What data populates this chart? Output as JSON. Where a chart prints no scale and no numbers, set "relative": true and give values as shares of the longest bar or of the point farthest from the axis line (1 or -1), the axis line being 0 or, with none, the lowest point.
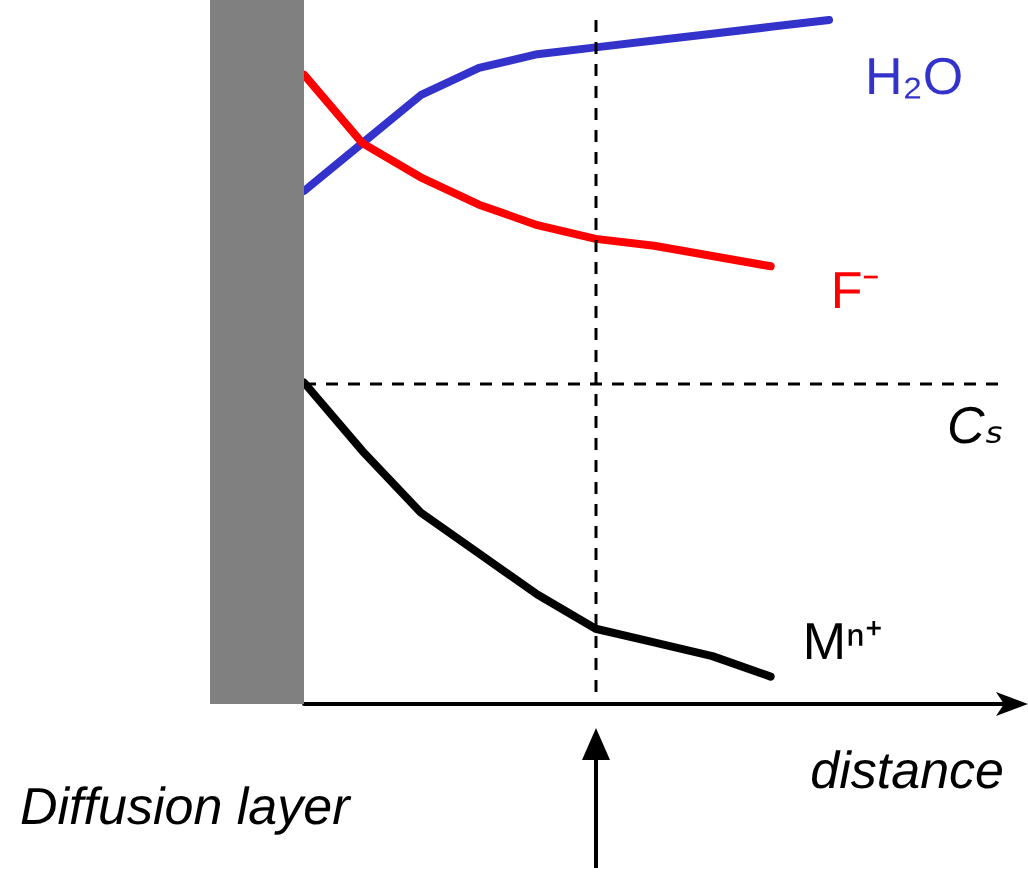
{
  "chart_data": {
    "type": "line",
    "relative": true,
    "xlabel": "distance",
    "annotations": [
      "Diffusion layer"
    ],
    "categories": [
      null,
      null,
      null,
      null,
      null,
      null,
      null,
      null,
      null,
      null,
      null,
      null,
      null
    ],
    "series": [
      {
        "name": "H₂O",
        "color": "#3333cc",
        "values": [
          0.75,
          0.82,
          0.89,
          0.93,
          0.95,
          0.96,
          0.97,
          0.98,
          0.99,
          1,
          null,
          null,
          null
        ]
      },
      {
        "name": "F⁻",
        "color": "#ff0000",
        "values": [
          0.92,
          0.82,
          0.77,
          0.73,
          0.7,
          0.68,
          0.67,
          0.655,
          0.64,
          null,
          null,
          null,
          null
        ]
      },
      {
        "name": "Mⁿ⁺",
        "color": "#000000",
        "values": [
          0.47,
          0.37,
          0.28,
          0.22,
          0.16,
          0.11,
          0.09,
          0.07,
          0.04,
          null,
          null,
          null,
          null
        ]
      }
    ],
    "ref_lines": [
      {
        "axis": "y",
        "value": 0.47,
        "label": "Cₛ",
        "line_style": "dashed"
      }
    ],
    "legend": false,
    "grid": false,
    "marker": "none",
    "line_style": "solid"
  }
}
